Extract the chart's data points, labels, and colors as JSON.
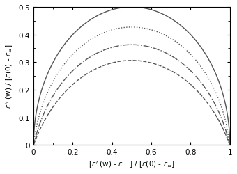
{
  "xlabel": "[$\\varepsilon^{\\prime}$ (w) - $\\varepsilon$   ] / [$\\varepsilon$(0) - $\\varepsilon_{\\infty}$]",
  "ylabel": "$\\varepsilon^{\\prime\\prime}$ (w) / [$\\varepsilon$(0) - $\\varepsilon_{\\infty}$]",
  "xlim": [
    0,
    1
  ],
  "ylim": [
    0,
    0.5
  ],
  "xticks": [
    0,
    0.2,
    0.4,
    0.6,
    0.8,
    1
  ],
  "yticks": [
    0,
    0.1,
    0.2,
    0.3,
    0.4,
    0.5
  ],
  "curves": [
    {
      "alpha": 0.1,
      "style": "dotted",
      "lw": 1.0
    },
    {
      "alpha": 0.0,
      "style": "solid",
      "lw": 1.0
    },
    {
      "alpha": 0.2,
      "style": "dashdot",
      "lw": 1.0
    },
    {
      "alpha": 0.3,
      "style": "dashed",
      "lw": 1.0
    }
  ],
  "line_color": "#555555",
  "background_color": "#ffffff",
  "n_points": 2000,
  "figsize": [
    3.4,
    2.51
  ],
  "dpi": 100
}
